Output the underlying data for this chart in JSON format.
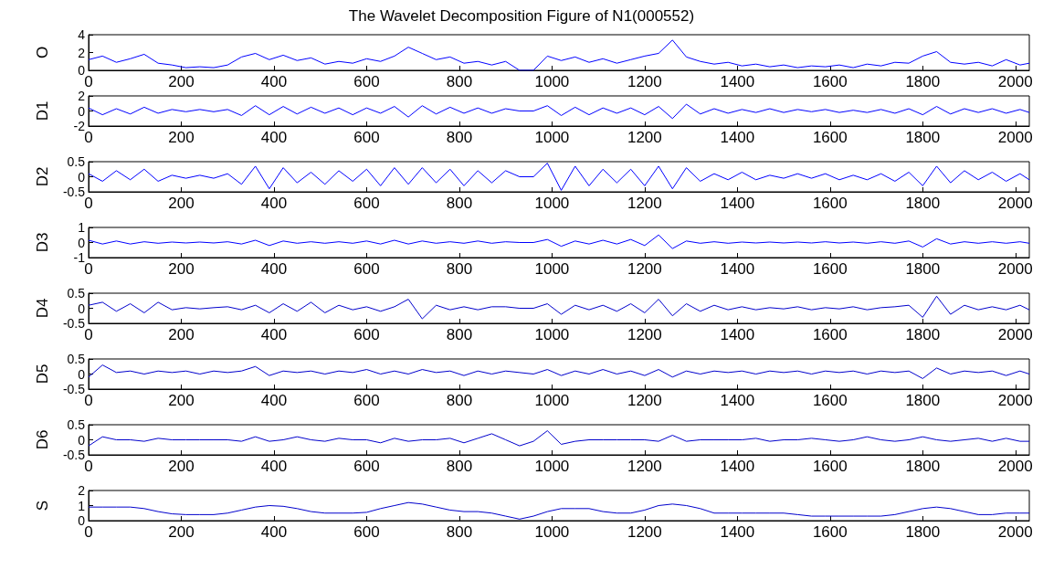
{
  "chart_data": [
    {
      "type": "line",
      "title": "The Wavelet Decomposition Figure of N1(000552)",
      "ylabel": "O",
      "color": "#0000ff",
      "xlim": [
        0,
        2030
      ],
      "xticks": [
        0,
        200,
        400,
        600,
        800,
        1000,
        1200,
        1400,
        1600,
        1800,
        2000
      ],
      "ylim": [
        0,
        4
      ],
      "yticks": [
        0,
        2,
        4
      ],
      "x": [
        0,
        30,
        60,
        90,
        120,
        150,
        180,
        210,
        240,
        270,
        300,
        330,
        360,
        390,
        420,
        450,
        480,
        510,
        540,
        570,
        600,
        630,
        660,
        690,
        720,
        750,
        780,
        810,
        840,
        870,
        900,
        930,
        960,
        990,
        1020,
        1050,
        1080,
        1110,
        1140,
        1170,
        1200,
        1230,
        1260,
        1290,
        1320,
        1350,
        1380,
        1410,
        1440,
        1470,
        1500,
        1530,
        1560,
        1590,
        1620,
        1650,
        1680,
        1710,
        1740,
        1770,
        1800,
        1830,
        1860,
        1890,
        1920,
        1950,
        1980,
        2010,
        2030
      ],
      "values": [
        1.2,
        1.6,
        0.9,
        1.3,
        1.8,
        0.8,
        0.6,
        0.3,
        0.4,
        0.3,
        0.6,
        1.5,
        1.9,
        1.2,
        1.7,
        1.1,
        1.4,
        0.7,
        1.0,
        0.8,
        1.3,
        1.0,
        1.6,
        2.6,
        1.9,
        1.2,
        1.5,
        0.8,
        1.0,
        0.6,
        1.0,
        0,
        0,
        1.6,
        1.1,
        1.5,
        0.9,
        1.3,
        0.8,
        1.2,
        1.6,
        1.9,
        3.4,
        1.5,
        1.0,
        0.7,
        0.9,
        0.5,
        0.7,
        0.4,
        0.6,
        0.3,
        0.5,
        0.4,
        0.6,
        0.3,
        0.7,
        0.5,
        0.9,
        0.8,
        1.6,
        2.1,
        0.9,
        0.7,
        0.9,
        0.5,
        1.2,
        0.6,
        0.8
      ]
    },
    {
      "type": "line",
      "ylabel": "D1",
      "color": "#0000ff",
      "xlim": [
        0,
        2030
      ],
      "xticks": [
        0,
        200,
        400,
        600,
        800,
        1000,
        1200,
        1400,
        1600,
        1800,
        2000
      ],
      "ylim": [
        -2,
        2
      ],
      "yticks": [
        -2,
        0,
        2
      ],
      "x": [
        0,
        30,
        60,
        90,
        120,
        150,
        180,
        210,
        240,
        270,
        300,
        330,
        360,
        390,
        420,
        450,
        480,
        510,
        540,
        570,
        600,
        630,
        660,
        690,
        720,
        750,
        780,
        810,
        840,
        870,
        900,
        930,
        960,
        990,
        1020,
        1050,
        1080,
        1110,
        1140,
        1170,
        1200,
        1230,
        1260,
        1290,
        1320,
        1350,
        1380,
        1410,
        1440,
        1470,
        1500,
        1530,
        1560,
        1590,
        1620,
        1650,
        1680,
        1710,
        1740,
        1770,
        1800,
        1830,
        1860,
        1890,
        1920,
        1950,
        1980,
        2010,
        2030
      ],
      "values": [
        0.4,
        -0.5,
        0.3,
        -0.4,
        0.5,
        -0.3,
        0.2,
        -0.1,
        0.2,
        -0.1,
        0.2,
        -0.6,
        0.7,
        -0.5,
        0.6,
        -0.4,
        0.5,
        -0.3,
        0.4,
        -0.5,
        0.4,
        -0.3,
        0.6,
        -0.8,
        0.7,
        -0.4,
        0.5,
        -0.3,
        0.4,
        -0.3,
        0.3,
        0,
        0,
        0.7,
        -0.6,
        0.5,
        -0.5,
        0.4,
        -0.3,
        0.4,
        -0.5,
        0.6,
        -1.0,
        0.9,
        -0.4,
        0.3,
        -0.3,
        0.2,
        -0.2,
        0.3,
        -0.2,
        0.2,
        -0.1,
        0.2,
        -0.2,
        0.1,
        -0.2,
        0.2,
        -0.3,
        0.3,
        -0.5,
        0.6,
        -0.4,
        0.3,
        -0.2,
        0.3,
        -0.3,
        0.2,
        -0.2
      ]
    },
    {
      "type": "line",
      "ylabel": "D2",
      "color": "#0000ff",
      "xlim": [
        0,
        2030
      ],
      "xticks": [
        0,
        200,
        400,
        600,
        800,
        1000,
        1200,
        1400,
        1600,
        1800,
        2000
      ],
      "ylim": [
        -0.5,
        0.5
      ],
      "yticks": [
        -0.5,
        0,
        0.5
      ],
      "x": [
        0,
        30,
        60,
        90,
        120,
        150,
        180,
        210,
        240,
        270,
        300,
        330,
        360,
        390,
        420,
        450,
        480,
        510,
        540,
        570,
        600,
        630,
        660,
        690,
        720,
        750,
        780,
        810,
        840,
        870,
        900,
        930,
        960,
        990,
        1020,
        1050,
        1080,
        1110,
        1140,
        1170,
        1200,
        1230,
        1260,
        1290,
        1320,
        1350,
        1380,
        1410,
        1440,
        1470,
        1500,
        1530,
        1560,
        1590,
        1620,
        1650,
        1680,
        1710,
        1740,
        1770,
        1800,
        1830,
        1860,
        1890,
        1920,
        1950,
        1980,
        2010,
        2030
      ],
      "values": [
        0.1,
        -0.15,
        0.2,
        -0.1,
        0.25,
        -0.15,
        0.05,
        -0.05,
        0.05,
        -0.05,
        0.1,
        -0.25,
        0.35,
        -0.4,
        0.3,
        -0.2,
        0.15,
        -0.25,
        0.2,
        -0.15,
        0.25,
        -0.3,
        0.3,
        -0.25,
        0.3,
        -0.2,
        0.25,
        -0.3,
        0.2,
        -0.2,
        0.2,
        0,
        0,
        0.45,
        -0.45,
        0.35,
        -0.3,
        0.25,
        -0.2,
        0.25,
        -0.3,
        0.35,
        -0.4,
        0.3,
        -0.15,
        0.1,
        -0.1,
        0.15,
        -0.1,
        0.05,
        -0.05,
        0.1,
        -0.05,
        0.1,
        -0.1,
        0.05,
        -0.1,
        0.1,
        -0.15,
        0.15,
        -0.3,
        0.35,
        -0.2,
        0.2,
        -0.1,
        0.15,
        -0.15,
        0.1,
        -0.1
      ]
    },
    {
      "type": "line",
      "ylabel": "D3",
      "color": "#0000ff",
      "xlim": [
        0,
        2030
      ],
      "xticks": [
        0,
        200,
        400,
        600,
        800,
        1000,
        1200,
        1400,
        1600,
        1800,
        2000
      ],
      "ylim": [
        -1,
        1
      ],
      "yticks": [
        -1,
        0,
        1
      ],
      "x": [
        0,
        30,
        60,
        90,
        120,
        150,
        180,
        210,
        240,
        270,
        300,
        330,
        360,
        390,
        420,
        450,
        480,
        510,
        540,
        570,
        600,
        630,
        660,
        690,
        720,
        750,
        780,
        810,
        840,
        870,
        900,
        930,
        960,
        990,
        1020,
        1050,
        1080,
        1110,
        1140,
        1170,
        1200,
        1230,
        1260,
        1290,
        1320,
        1350,
        1380,
        1410,
        1440,
        1470,
        1500,
        1530,
        1560,
        1590,
        1620,
        1650,
        1680,
        1710,
        1740,
        1770,
        1800,
        1830,
        1860,
        1890,
        1920,
        1950,
        1980,
        2010,
        2030
      ],
      "values": [
        0.15,
        -0.1,
        0.1,
        -0.1,
        0.05,
        -0.05,
        0.03,
        -0.03,
        0.03,
        -0.03,
        0.05,
        -0.1,
        0.15,
        -0.2,
        0.1,
        -0.05,
        0.05,
        -0.05,
        0.05,
        -0.05,
        0.1,
        -0.1,
        0.15,
        -0.1,
        0.1,
        -0.05,
        0.05,
        -0.05,
        0.1,
        -0.05,
        0.05,
        0,
        0,
        0.2,
        -0.25,
        0.1,
        -0.1,
        0.15,
        -0.1,
        0.2,
        -0.2,
        0.5,
        -0.4,
        0.1,
        -0.05,
        0.05,
        -0.05,
        0.03,
        -0.03,
        0.03,
        -0.03,
        0.03,
        -0.03,
        0.05,
        -0.03,
        0.03,
        -0.05,
        0.05,
        -0.05,
        0.1,
        -0.3,
        0.25,
        -0.1,
        0.05,
        -0.05,
        0.05,
        -0.05,
        0.05,
        -0.05
      ]
    },
    {
      "type": "line",
      "ylabel": "D4",
      "color": "#0000cc",
      "xlim": [
        0,
        2030
      ],
      "xticks": [
        0,
        200,
        400,
        600,
        800,
        1000,
        1200,
        1400,
        1600,
        1800,
        2000
      ],
      "ylim": [
        -0.5,
        0.5
      ],
      "yticks": [
        -0.5,
        0,
        0.5
      ],
      "x": [
        0,
        30,
        60,
        90,
        120,
        150,
        180,
        210,
        240,
        270,
        300,
        330,
        360,
        390,
        420,
        450,
        480,
        510,
        540,
        570,
        600,
        630,
        660,
        690,
        720,
        750,
        780,
        810,
        840,
        870,
        900,
        930,
        960,
        990,
        1020,
        1050,
        1080,
        1110,
        1140,
        1170,
        1200,
        1230,
        1260,
        1290,
        1320,
        1350,
        1380,
        1410,
        1440,
        1470,
        1500,
        1530,
        1560,
        1590,
        1620,
        1650,
        1680,
        1710,
        1740,
        1770,
        1800,
        1830,
        1860,
        1890,
        1920,
        1950,
        1980,
        2010,
        2030
      ],
      "values": [
        0.1,
        0.2,
        -0.1,
        0.15,
        -0.15,
        0.2,
        -0.05,
        0.02,
        -0.02,
        0.02,
        0.05,
        -0.05,
        0.1,
        -0.15,
        0.15,
        -0.1,
        0.2,
        -0.15,
        0.1,
        -0.05,
        0.05,
        -0.1,
        0.05,
        0.3,
        -0.35,
        0.1,
        -0.05,
        0.05,
        -0.05,
        0.05,
        0.05,
        0,
        0,
        0.15,
        -0.2,
        0.1,
        -0.05,
        0.1,
        -0.1,
        0.15,
        -0.15,
        0.3,
        -0.25,
        0.15,
        -0.1,
        0.1,
        -0.05,
        0.05,
        -0.05,
        0.02,
        -0.02,
        0.05,
        -0.05,
        0.02,
        -0.02,
        0.05,
        -0.05,
        0.02,
        0.05,
        0.1,
        -0.3,
        0.4,
        -0.2,
        0.1,
        -0.05,
        0.05,
        -0.05,
        0.1,
        -0.05
      ]
    },
    {
      "type": "line",
      "ylabel": "D5",
      "color": "#0000cc",
      "xlim": [
        0,
        2030
      ],
      "xticks": [
        0,
        200,
        400,
        600,
        800,
        1000,
        1200,
        1400,
        1600,
        1800,
        2000
      ],
      "ylim": [
        -0.5,
        0.5
      ],
      "yticks": [
        -0.5,
        0,
        0.5
      ],
      "x": [
        0,
        30,
        60,
        90,
        120,
        150,
        180,
        210,
        240,
        270,
        300,
        330,
        360,
        390,
        420,
        450,
        480,
        510,
        540,
        570,
        600,
        630,
        660,
        690,
        720,
        750,
        780,
        810,
        840,
        870,
        900,
        930,
        960,
        990,
        1020,
        1050,
        1080,
        1110,
        1140,
        1170,
        1200,
        1230,
        1260,
        1290,
        1320,
        1350,
        1380,
        1410,
        1440,
        1470,
        1500,
        1530,
        1560,
        1590,
        1620,
        1650,
        1680,
        1710,
        1740,
        1770,
        1800,
        1830,
        1860,
        1890,
        1920,
        1950,
        1980,
        2010,
        2030
      ],
      "values": [
        -0.1,
        0.3,
        0.05,
        0.1,
        0.0,
        0.1,
        0.05,
        0.1,
        0.0,
        0.1,
        0.05,
        0.1,
        0.25,
        -0.05,
        0.1,
        0.05,
        0.1,
        0.0,
        0.1,
        0.05,
        0.15,
        0.0,
        0.1,
        0.0,
        0.15,
        0.05,
        0.1,
        -0.05,
        0.1,
        0.0,
        0.1,
        0.05,
        0.0,
        0.15,
        -0.05,
        0.1,
        0.0,
        0.15,
        0.0,
        0.1,
        -0.05,
        0.15,
        -0.1,
        0.1,
        0.0,
        0.1,
        0.05,
        0.1,
        0.0,
        0.1,
        0.05,
        0.1,
        0.0,
        0.1,
        0.05,
        0.1,
        0.0,
        0.1,
        0.05,
        0.1,
        -0.15,
        0.2,
        0.0,
        0.1,
        0.05,
        0.1,
        -0.05,
        0.1,
        0.0
      ]
    },
    {
      "type": "line",
      "ylabel": "D6",
      "color": "#0000cc",
      "xlim": [
        0,
        2030
      ],
      "xticks": [
        0,
        200,
        400,
        600,
        800,
        1000,
        1200,
        1400,
        1600,
        1800,
        2000
      ],
      "ylim": [
        -0.5,
        0.5
      ],
      "yticks": [
        -0.5,
        0,
        0.5
      ],
      "x": [
        0,
        30,
        60,
        90,
        120,
        150,
        180,
        210,
        240,
        270,
        300,
        330,
        360,
        390,
        420,
        450,
        480,
        510,
        540,
        570,
        600,
        630,
        660,
        690,
        720,
        750,
        780,
        810,
        840,
        870,
        900,
        930,
        960,
        990,
        1020,
        1050,
        1080,
        1110,
        1140,
        1170,
        1200,
        1230,
        1260,
        1290,
        1320,
        1350,
        1380,
        1410,
        1440,
        1470,
        1500,
        1530,
        1560,
        1590,
        1620,
        1650,
        1680,
        1710,
        1740,
        1770,
        1800,
        1830,
        1860,
        1890,
        1920,
        1950,
        1980,
        2010,
        2030
      ],
      "values": [
        -0.2,
        0.1,
        0.0,
        0.0,
        -0.05,
        0.05,
        0.0,
        0.0,
        0.0,
        0.0,
        0.0,
        -0.05,
        0.1,
        -0.05,
        0.0,
        0.1,
        0.0,
        -0.05,
        0.05,
        0.0,
        0.0,
        -0.1,
        0.05,
        -0.05,
        0.0,
        0.0,
        0.05,
        -0.1,
        0.05,
        0.2,
        0.0,
        -0.2,
        -0.05,
        0.3,
        -0.15,
        -0.05,
        0.0,
        0.0,
        0.0,
        0.0,
        0.0,
        -0.05,
        0.15,
        -0.05,
        0.0,
        0.0,
        0.0,
        0.0,
        0.05,
        -0.05,
        0.0,
        0.0,
        0.05,
        0.0,
        -0.05,
        0.0,
        0.1,
        0.0,
        -0.05,
        0.0,
        0.1,
        0.0,
        -0.05,
        0.0,
        0.05,
        -0.05,
        0.05,
        -0.05,
        -0.05
      ]
    },
    {
      "type": "line",
      "ylabel": "S",
      "color": "#0000cc",
      "xlim": [
        0,
        2030
      ],
      "xticks": [
        0,
        200,
        400,
        600,
        800,
        1000,
        1200,
        1400,
        1600,
        1800,
        2000
      ],
      "ylim": [
        0,
        2
      ],
      "yticks": [
        0,
        1,
        2
      ],
      "x": [
        0,
        30,
        60,
        90,
        120,
        150,
        180,
        210,
        240,
        270,
        300,
        330,
        360,
        390,
        420,
        450,
        480,
        510,
        540,
        570,
        600,
        630,
        660,
        690,
        720,
        750,
        780,
        810,
        840,
        870,
        900,
        930,
        960,
        990,
        1020,
        1050,
        1080,
        1110,
        1140,
        1170,
        1200,
        1230,
        1260,
        1290,
        1320,
        1350,
        1380,
        1410,
        1440,
        1470,
        1500,
        1530,
        1560,
        1590,
        1620,
        1650,
        1680,
        1710,
        1740,
        1770,
        1800,
        1830,
        1860,
        1890,
        1920,
        1950,
        1980,
        2010,
        2030
      ],
      "values": [
        0.9,
        0.9,
        0.9,
        0.9,
        0.8,
        0.6,
        0.45,
        0.4,
        0.4,
        0.4,
        0.5,
        0.7,
        0.9,
        1.0,
        0.95,
        0.8,
        0.6,
        0.5,
        0.5,
        0.5,
        0.55,
        0.8,
        1.0,
        1.2,
        1.1,
        0.9,
        0.7,
        0.6,
        0.6,
        0.5,
        0.3,
        0.1,
        0.3,
        0.6,
        0.8,
        0.8,
        0.8,
        0.6,
        0.5,
        0.5,
        0.7,
        1.0,
        1.1,
        1.0,
        0.8,
        0.5,
        0.5,
        0.5,
        0.5,
        0.5,
        0.5,
        0.4,
        0.3,
        0.3,
        0.3,
        0.3,
        0.3,
        0.3,
        0.4,
        0.6,
        0.8,
        0.9,
        0.8,
        0.6,
        0.4,
        0.4,
        0.5,
        0.5,
        0.5
      ]
    }
  ]
}
